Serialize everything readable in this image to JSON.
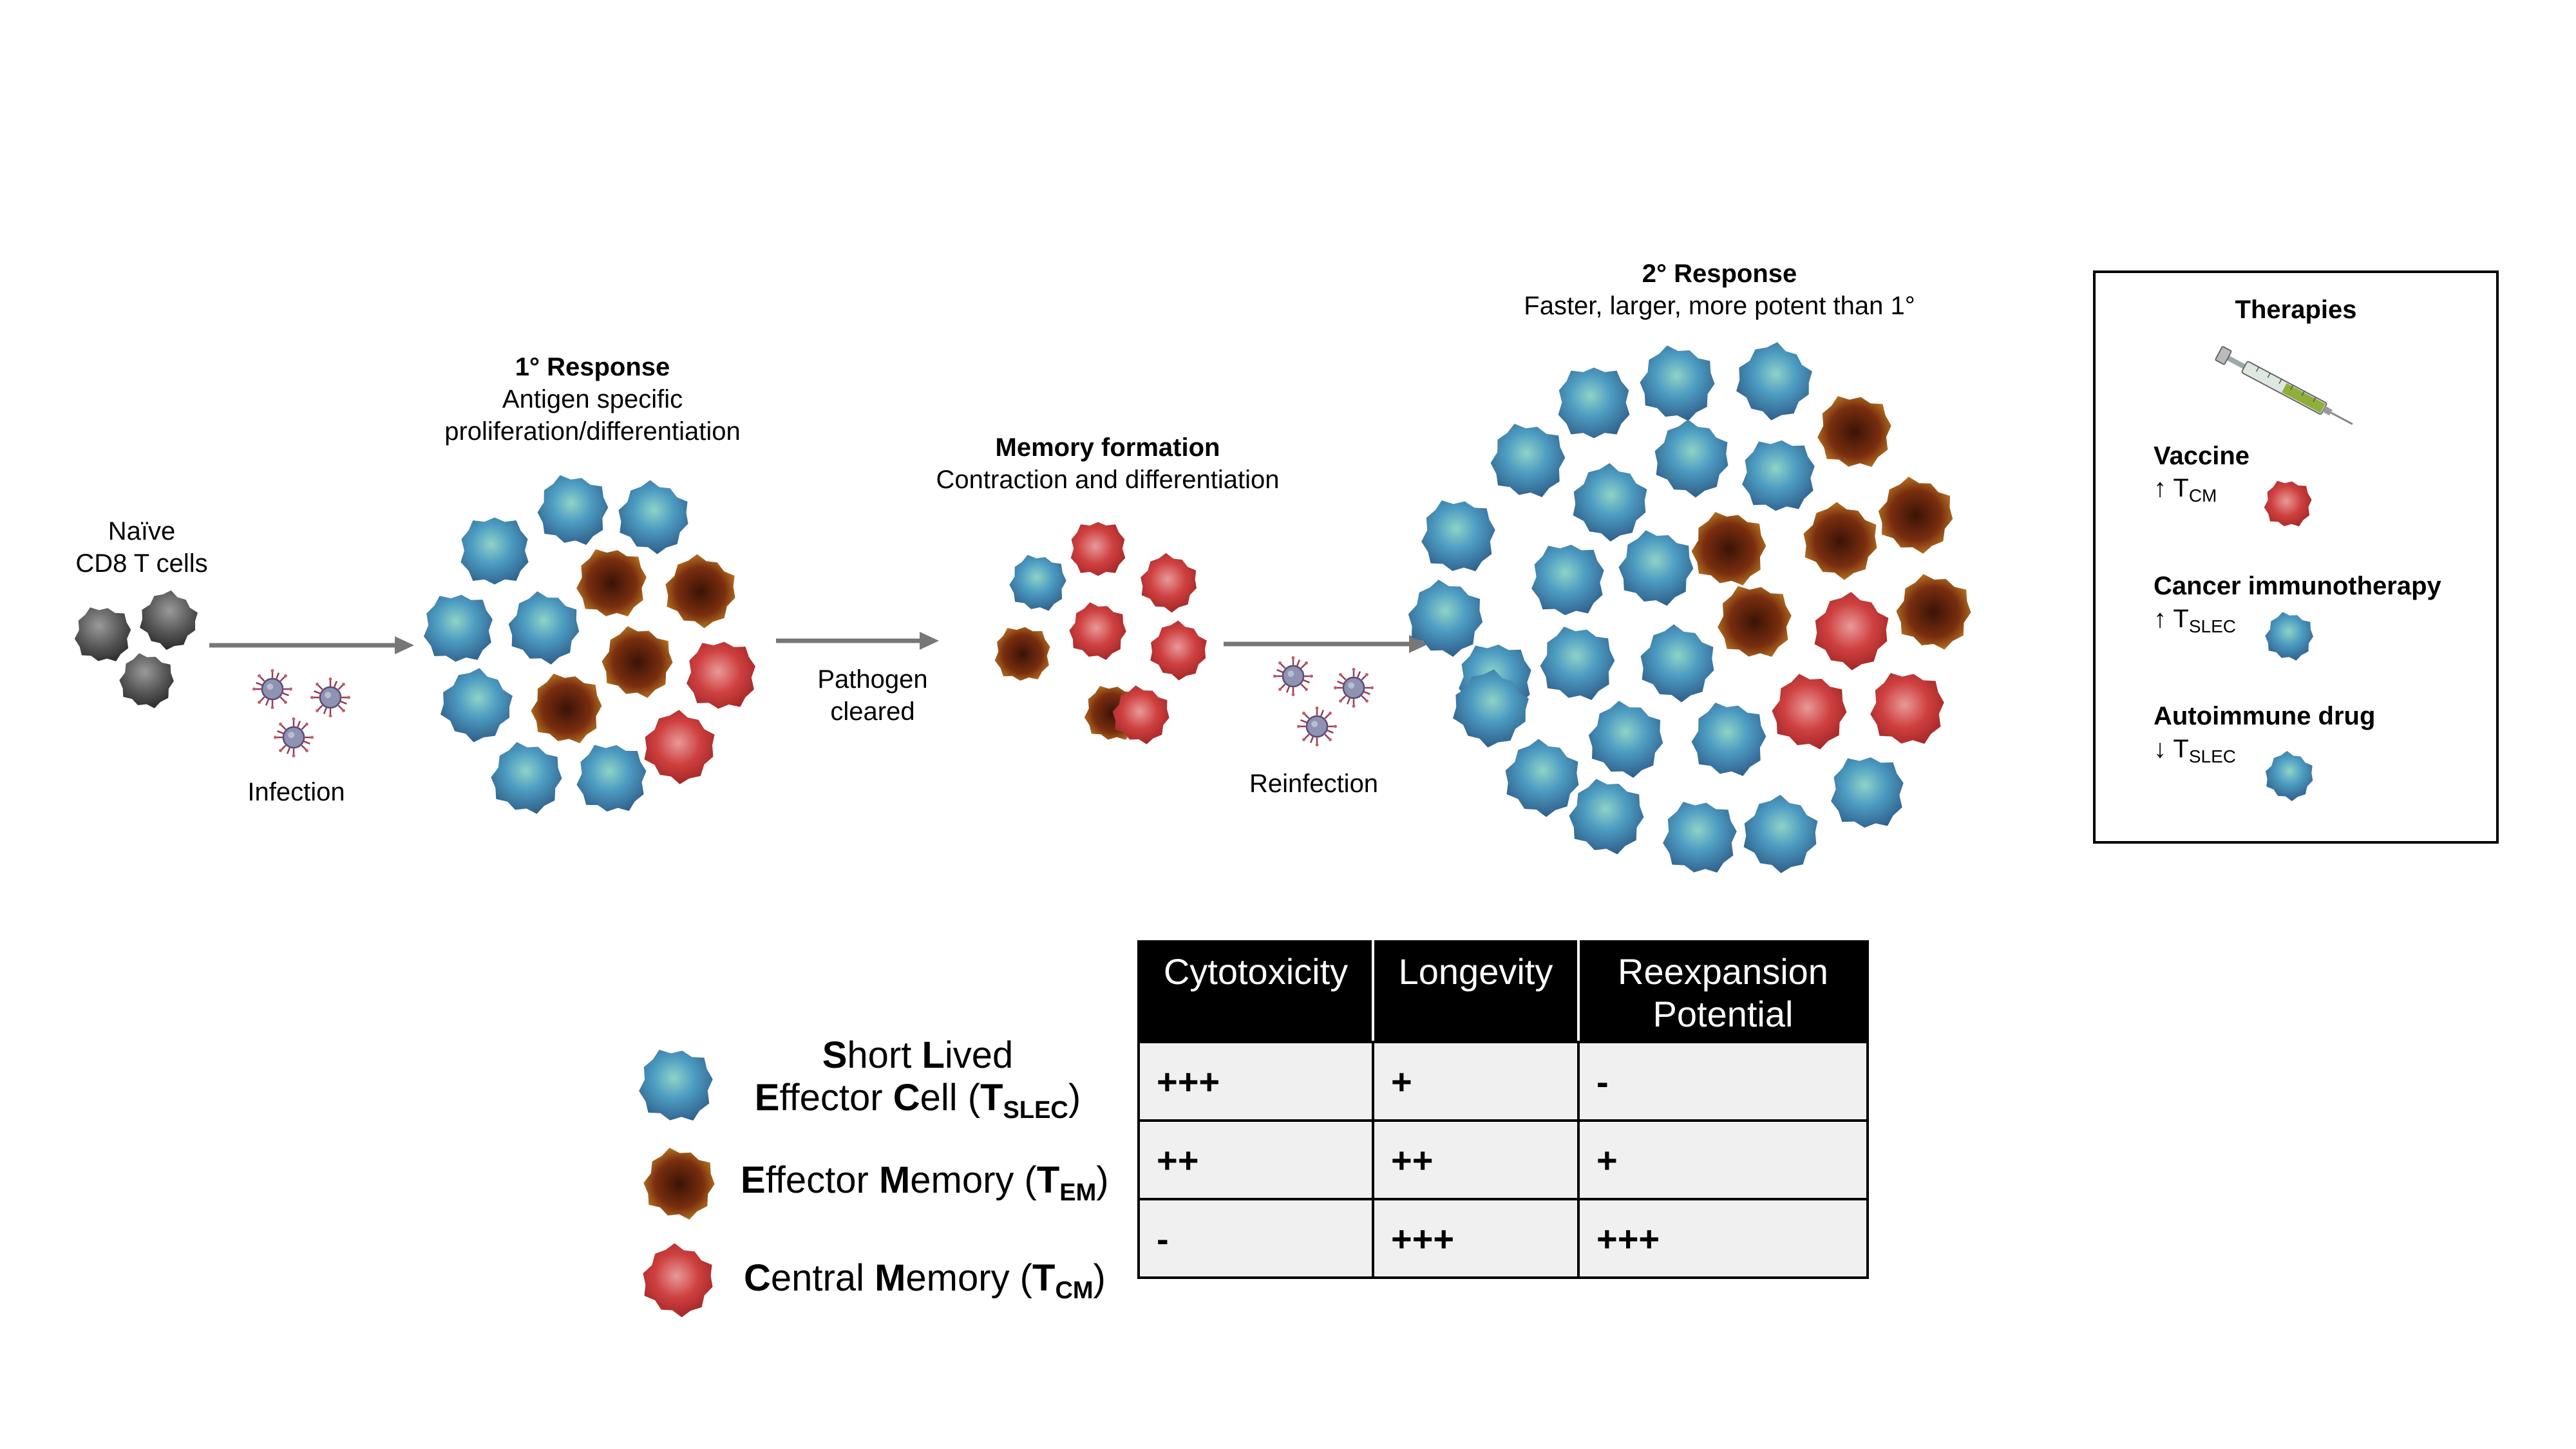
{
  "naive": {
    "line1": "Naïve",
    "line2": "CD8 T cells"
  },
  "infection_label": "Infection",
  "primary": {
    "title": "1° Response",
    "line1": "Antigen specific",
    "line2": "proliferation/differentiation"
  },
  "pathogen_label": {
    "line1": "Pathogen",
    "line2": "cleared"
  },
  "memory": {
    "title": "Memory formation",
    "line1": "Contraction and differentiation"
  },
  "reinfection_label": "Reinfection",
  "secondary": {
    "title": "2° Response",
    "line1": "Faster, larger, more potent than 1°"
  },
  "therapies": {
    "title": "Therapies",
    "items": [
      {
        "label": "Vaccine",
        "arrow": "↑",
        "symbol": "T",
        "subscript": "CM",
        "cell_type": "red"
      },
      {
        "label": "Cancer immunotherapy",
        "arrow": "↑",
        "symbol": "T",
        "subscript": "SLEC",
        "cell_type": "blue"
      },
      {
        "label": "Autoimmune drug",
        "arrow": "↓",
        "symbol": "T",
        "subscript": "SLEC",
        "cell_type": "blue"
      }
    ]
  },
  "legend": [
    {
      "line1_b1": "S",
      "line1_r1": "hort ",
      "line1_b2": "L",
      "line1_r2": "ived",
      "line2_b1": "E",
      "line2_r1": "ffector ",
      "line2_b2": "C",
      "line2_r2": "ell (",
      "line2_T": "T",
      "line2_sub": "SLEC",
      "line2_end": ")"
    },
    {
      "b1": "E",
      "r1": "ffector ",
      "b2": "M",
      "r2": "emory (",
      "T": "T",
      "sub": "EM",
      "end": ")"
    },
    {
      "b1": "C",
      "r1": "entral ",
      "b2": "M",
      "r2": "emory (",
      "T": "T",
      "sub": "CM",
      "end": ")"
    }
  ],
  "table": {
    "headers": [
      "Cytotoxicity",
      "Longevity",
      "Reexpansion",
      "Potential"
    ],
    "rows": [
      [
        "+++",
        "+",
        "-"
      ],
      [
        "++",
        "++",
        "+"
      ],
      [
        "-",
        "+++",
        "+++"
      ]
    ]
  },
  "colors": {
    "blue_cell": "#4a95b8",
    "brown_cell": "#6b2a0e",
    "red_cell": "#c43a3a",
    "gray_cell": "#555555",
    "arrow": "#777777"
  }
}
